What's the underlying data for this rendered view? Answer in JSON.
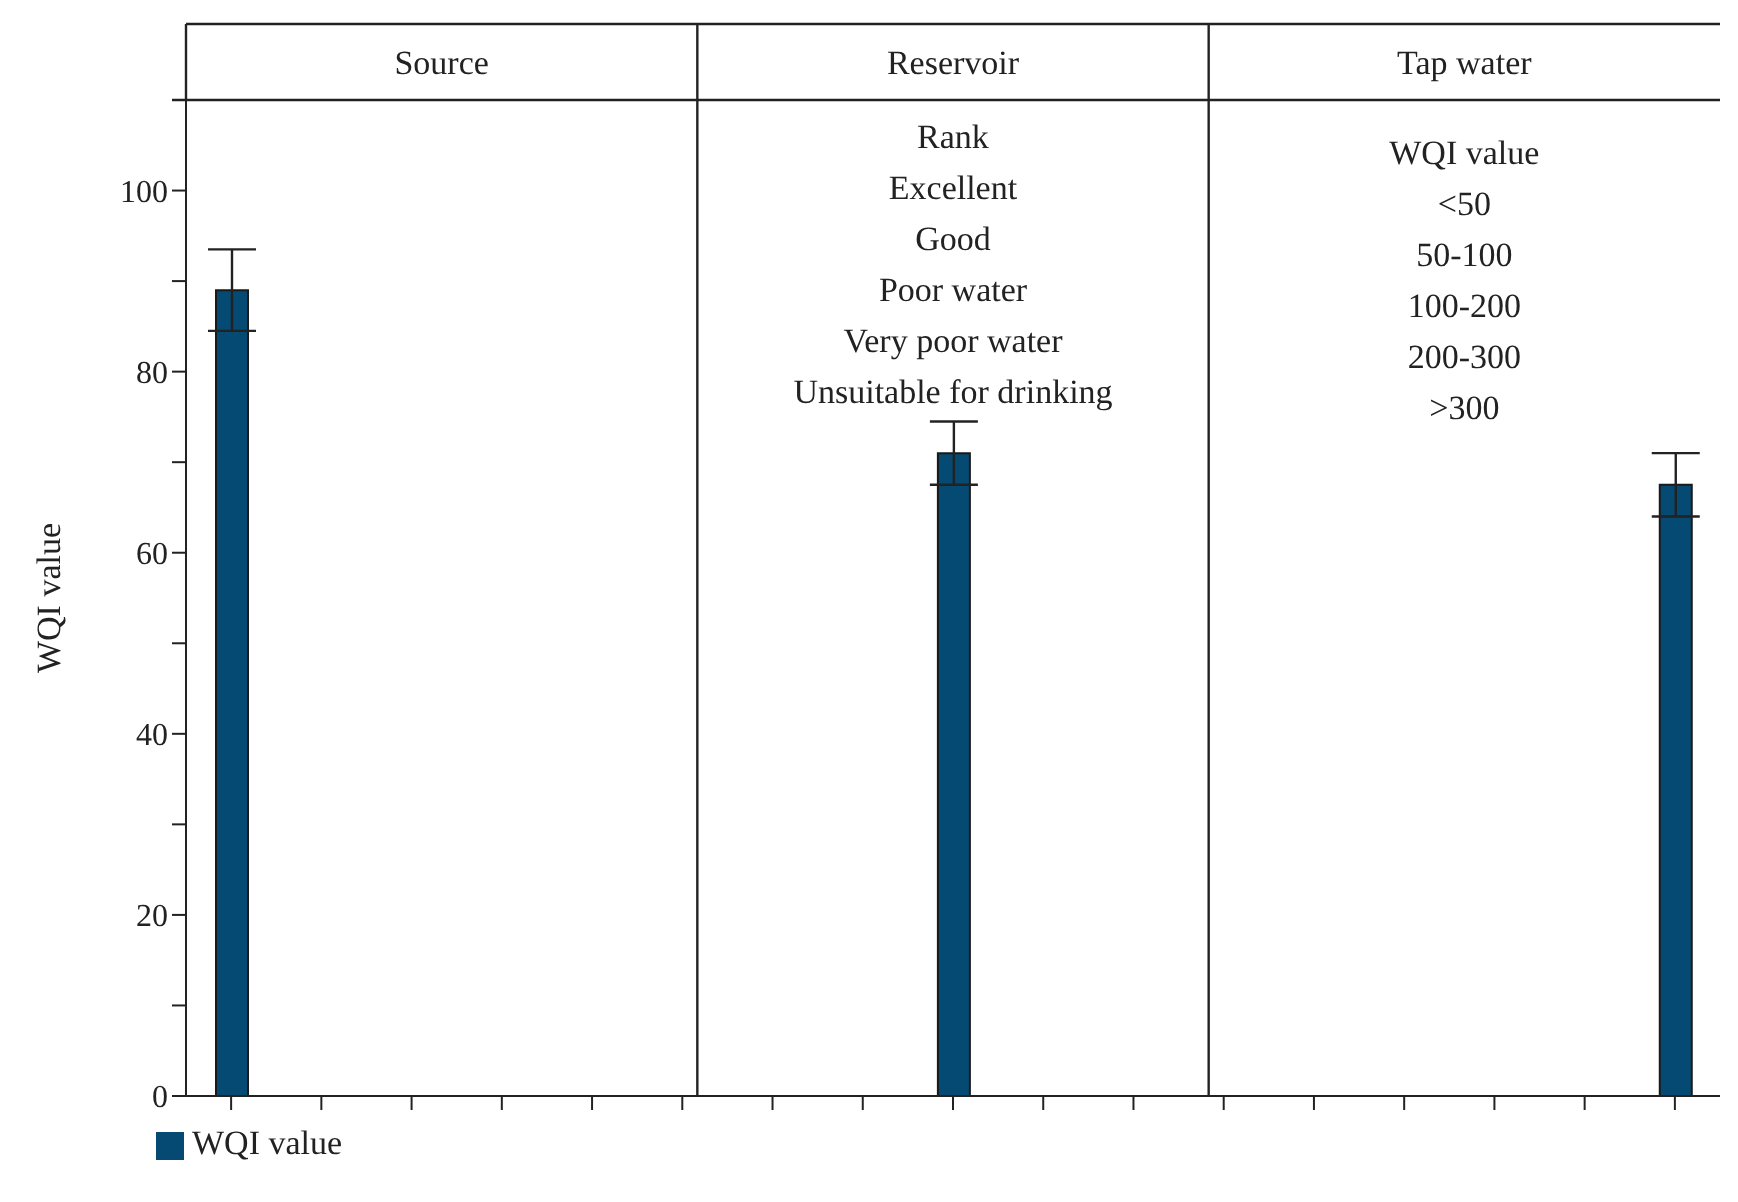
{
  "chart_data": {
    "type": "bar",
    "ylabel": "WQI value",
    "categories": [
      null,
      null,
      null,
      null,
      null,
      null,
      null,
      null,
      null,
      null,
      null,
      null,
      null,
      null,
      null,
      null,
      null
    ],
    "series": [
      {
        "name": "WQI value",
        "color": "#054a73",
        "values": [
          89,
          null,
          null,
          null,
          null,
          null,
          null,
          null,
          71,
          null,
          null,
          null,
          null,
          null,
          null,
          null,
          67.5
        ],
        "errors": [
          4.5,
          null,
          null,
          null,
          null,
          null,
          null,
          null,
          3.5,
          null,
          null,
          null,
          null,
          null,
          null,
          null,
          3.5
        ]
      }
    ],
    "ylim": [
      0,
      110
    ],
    "yticks": [
      0,
      {
        "value": 10,
        "label": null
      },
      20,
      {
        "value": 30,
        "label": null
      },
      40,
      {
        "value": 50,
        "label": null
      },
      60,
      {
        "value": 70,
        "label": null
      },
      80,
      {
        "value": 90,
        "label": null
      },
      100
    ],
    "tick_labels": "y",
    "grid": false,
    "legend": "bottom left",
    "annotations": [
      "Source",
      "Reservoir",
      "Tap water",
      "Rank\nExcellent\nGood\nPoor water\nVery poor water\nUnsuitable for drinking",
      "WQI value\n<50\n50-100\n100-200\n200-300\n>300"
    ]
  }
}
